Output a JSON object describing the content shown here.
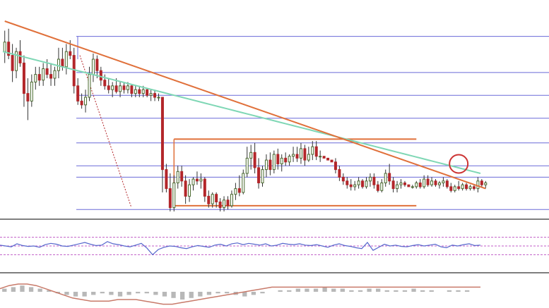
{
  "colors": {
    "background": "#ffffff",
    "bull_candle": "#4a6a2e",
    "bear_candle": "#b3262a",
    "ma_line": "#7fd7b5",
    "trend_line": "#e0703a",
    "range_box": "#e0703a",
    "fib_lines": "#6a6ad8",
    "rsi_line": "#5566cc",
    "rsi_levels": "#c05ec8",
    "macd_line": "#c87a6a",
    "macd_hist": "#b8b8b8",
    "highlight_circle": "#cc3333",
    "panel_separator": "#555555"
  },
  "chart_data": [
    {
      "type": "candlestick",
      "panel": "price",
      "candles": [
        {
          "o": 0.84,
          "h": 0.95,
          "l": 0.78,
          "c": 0.89
        },
        {
          "o": 0.89,
          "h": 0.96,
          "l": 0.8,
          "c": 0.82
        },
        {
          "o": 0.82,
          "h": 0.88,
          "l": 0.68,
          "c": 0.74
        },
        {
          "o": 0.74,
          "h": 0.86,
          "l": 0.7,
          "c": 0.84
        },
        {
          "o": 0.84,
          "h": 0.9,
          "l": 0.76,
          "c": 0.78
        },
        {
          "o": 0.78,
          "h": 0.82,
          "l": 0.55,
          "c": 0.62
        },
        {
          "o": 0.62,
          "h": 0.7,
          "l": 0.48,
          "c": 0.58
        },
        {
          "o": 0.58,
          "h": 0.72,
          "l": 0.55,
          "c": 0.68
        },
        {
          "o": 0.68,
          "h": 0.76,
          "l": 0.64,
          "c": 0.72
        },
        {
          "o": 0.72,
          "h": 0.76,
          "l": 0.66,
          "c": 0.69
        },
        {
          "o": 0.69,
          "h": 0.78,
          "l": 0.66,
          "c": 0.75
        },
        {
          "o": 0.75,
          "h": 0.8,
          "l": 0.7,
          "c": 0.72
        },
        {
          "o": 0.72,
          "h": 0.78,
          "l": 0.66,
          "c": 0.7
        },
        {
          "o": 0.7,
          "h": 0.76,
          "l": 0.66,
          "c": 0.74
        },
        {
          "o": 0.74,
          "h": 0.86,
          "l": 0.7,
          "c": 0.8
        },
        {
          "o": 0.8,
          "h": 0.86,
          "l": 0.74,
          "c": 0.76
        },
        {
          "o": 0.76,
          "h": 0.88,
          "l": 0.72,
          "c": 0.84
        },
        {
          "o": 0.84,
          "h": 0.9,
          "l": 0.8,
          "c": 0.82
        },
        {
          "o": 0.82,
          "h": 0.86,
          "l": 0.62,
          "c": 0.66
        },
        {
          "o": 0.66,
          "h": 0.7,
          "l": 0.56,
          "c": 0.58
        },
        {
          "o": 0.58,
          "h": 0.62,
          "l": 0.54,
          "c": 0.56
        },
        {
          "o": 0.56,
          "h": 0.64,
          "l": 0.52,
          "c": 0.6
        },
        {
          "o": 0.6,
          "h": 0.76,
          "l": 0.58,
          "c": 0.72
        },
        {
          "o": 0.72,
          "h": 0.83,
          "l": 0.68,
          "c": 0.8
        },
        {
          "o": 0.8,
          "h": 0.82,
          "l": 0.7,
          "c": 0.74
        },
        {
          "o": 0.74,
          "h": 0.76,
          "l": 0.66,
          "c": 0.69
        },
        {
          "o": 0.69,
          "h": 0.72,
          "l": 0.64,
          "c": 0.66
        },
        {
          "o": 0.66,
          "h": 0.7,
          "l": 0.62,
          "c": 0.64
        },
        {
          "o": 0.64,
          "h": 0.68,
          "l": 0.6,
          "c": 0.66
        },
        {
          "o": 0.66,
          "h": 0.7,
          "l": 0.62,
          "c": 0.63
        },
        {
          "o": 0.63,
          "h": 0.68,
          "l": 0.6,
          "c": 0.66
        },
        {
          "o": 0.66,
          "h": 0.68,
          "l": 0.62,
          "c": 0.64
        },
        {
          "o": 0.64,
          "h": 0.68,
          "l": 0.62,
          "c": 0.66
        },
        {
          "o": 0.66,
          "h": 0.67,
          "l": 0.6,
          "c": 0.62
        },
        {
          "o": 0.62,
          "h": 0.66,
          "l": 0.6,
          "c": 0.64
        },
        {
          "o": 0.64,
          "h": 0.66,
          "l": 0.6,
          "c": 0.62
        },
        {
          "o": 0.62,
          "h": 0.66,
          "l": 0.6,
          "c": 0.64
        },
        {
          "o": 0.64,
          "h": 0.65,
          "l": 0.6,
          "c": 0.61
        },
        {
          "o": 0.61,
          "h": 0.64,
          "l": 0.58,
          "c": 0.62
        },
        {
          "o": 0.62,
          "h": 0.64,
          "l": 0.58,
          "c": 0.6
        },
        {
          "o": 0.6,
          "h": 0.62,
          "l": 0.58,
          "c": 0.6
        },
        {
          "o": 0.6,
          "h": 0.6,
          "l": 0.1,
          "c": 0.22
        },
        {
          "o": 0.22,
          "h": 0.25,
          "l": 0.1,
          "c": 0.12
        },
        {
          "o": 0.12,
          "h": 0.2,
          "l": 0.0,
          "c": 0.02
        },
        {
          "o": 0.02,
          "h": 0.19,
          "l": 0.0,
          "c": 0.15
        },
        {
          "o": 0.15,
          "h": 0.24,
          "l": 0.12,
          "c": 0.21
        },
        {
          "o": 0.21,
          "h": 0.24,
          "l": 0.13,
          "c": 0.16
        },
        {
          "o": 0.16,
          "h": 0.19,
          "l": 0.04,
          "c": 0.08
        },
        {
          "o": 0.08,
          "h": 0.17,
          "l": 0.05,
          "c": 0.14
        },
        {
          "o": 0.14,
          "h": 0.18,
          "l": 0.11,
          "c": 0.17
        },
        {
          "o": 0.17,
          "h": 0.21,
          "l": 0.14,
          "c": 0.16
        },
        {
          "o": 0.16,
          "h": 0.2,
          "l": 0.12,
          "c": 0.17
        },
        {
          "o": 0.17,
          "h": 0.18,
          "l": 0.05,
          "c": 0.08
        },
        {
          "o": 0.08,
          "h": 0.11,
          "l": 0.02,
          "c": 0.04
        },
        {
          "o": 0.04,
          "h": 0.1,
          "l": 0.02,
          "c": 0.09
        },
        {
          "o": 0.09,
          "h": 0.1,
          "l": 0.02,
          "c": 0.05
        },
        {
          "o": 0.05,
          "h": 0.07,
          "l": 0.0,
          "c": 0.02
        },
        {
          "o": 0.02,
          "h": 0.08,
          "l": 0.0,
          "c": 0.06
        },
        {
          "o": 0.06,
          "h": 0.08,
          "l": 0.01,
          "c": 0.03
        },
        {
          "o": 0.03,
          "h": 0.11,
          "l": 0.02,
          "c": 0.09
        },
        {
          "o": 0.09,
          "h": 0.15,
          "l": 0.06,
          "c": 0.12
        },
        {
          "o": 0.12,
          "h": 0.19,
          "l": 0.08,
          "c": 0.1
        },
        {
          "o": 0.1,
          "h": 0.22,
          "l": 0.09,
          "c": 0.2
        },
        {
          "o": 0.2,
          "h": 0.34,
          "l": 0.18,
          "c": 0.28
        },
        {
          "o": 0.28,
          "h": 0.35,
          "l": 0.22,
          "c": 0.31
        },
        {
          "o": 0.31,
          "h": 0.36,
          "l": 0.2,
          "c": 0.23
        },
        {
          "o": 0.23,
          "h": 0.28,
          "l": 0.12,
          "c": 0.15
        },
        {
          "o": 0.15,
          "h": 0.24,
          "l": 0.13,
          "c": 0.22
        },
        {
          "o": 0.22,
          "h": 0.3,
          "l": 0.18,
          "c": 0.27
        },
        {
          "o": 0.27,
          "h": 0.31,
          "l": 0.19,
          "c": 0.22
        },
        {
          "o": 0.22,
          "h": 0.32,
          "l": 0.2,
          "c": 0.3
        },
        {
          "o": 0.3,
          "h": 0.33,
          "l": 0.22,
          "c": 0.25
        },
        {
          "o": 0.25,
          "h": 0.3,
          "l": 0.21,
          "c": 0.28
        },
        {
          "o": 0.28,
          "h": 0.31,
          "l": 0.24,
          "c": 0.26
        },
        {
          "o": 0.26,
          "h": 0.3,
          "l": 0.24,
          "c": 0.29
        },
        {
          "o": 0.29,
          "h": 0.34,
          "l": 0.26,
          "c": 0.3
        },
        {
          "o": 0.3,
          "h": 0.34,
          "l": 0.26,
          "c": 0.28
        },
        {
          "o": 0.28,
          "h": 0.36,
          "l": 0.25,
          "c": 0.33
        },
        {
          "o": 0.33,
          "h": 0.35,
          "l": 0.24,
          "c": 0.27
        },
        {
          "o": 0.27,
          "h": 0.34,
          "l": 0.26,
          "c": 0.3
        },
        {
          "o": 0.3,
          "h": 0.37,
          "l": 0.27,
          "c": 0.34
        },
        {
          "o": 0.34,
          "h": 0.37,
          "l": 0.27,
          "c": 0.29
        },
        {
          "o": 0.29,
          "h": 0.32,
          "l": 0.26,
          "c": 0.29
        },
        {
          "o": 0.29,
          "h": 0.29,
          "l": 0.28,
          "c": 0.28
        },
        {
          "o": 0.28,
          "h": 0.28,
          "l": 0.27,
          "c": 0.27
        },
        {
          "o": 0.27,
          "h": 0.27,
          "l": 0.26,
          "c": 0.26
        },
        {
          "o": 0.26,
          "h": 0.28,
          "l": 0.2,
          "c": 0.22
        },
        {
          "o": 0.22,
          "h": 0.24,
          "l": 0.16,
          "c": 0.18
        },
        {
          "o": 0.18,
          "h": 0.2,
          "l": 0.14,
          "c": 0.16
        },
        {
          "o": 0.16,
          "h": 0.18,
          "l": 0.12,
          "c": 0.14
        },
        {
          "o": 0.14,
          "h": 0.17,
          "l": 0.11,
          "c": 0.13
        },
        {
          "o": 0.13,
          "h": 0.16,
          "l": 0.11,
          "c": 0.14
        },
        {
          "o": 0.14,
          "h": 0.18,
          "l": 0.12,
          "c": 0.16
        },
        {
          "o": 0.16,
          "h": 0.17,
          "l": 0.12,
          "c": 0.13
        },
        {
          "o": 0.13,
          "h": 0.18,
          "l": 0.12,
          "c": 0.16
        },
        {
          "o": 0.16,
          "h": 0.2,
          "l": 0.13,
          "c": 0.18
        },
        {
          "o": 0.18,
          "h": 0.2,
          "l": 0.12,
          "c": 0.14
        },
        {
          "o": 0.14,
          "h": 0.16,
          "l": 0.1,
          "c": 0.11
        },
        {
          "o": 0.11,
          "h": 0.17,
          "l": 0.1,
          "c": 0.15
        },
        {
          "o": 0.15,
          "h": 0.22,
          "l": 0.13,
          "c": 0.2
        },
        {
          "o": 0.2,
          "h": 0.25,
          "l": 0.14,
          "c": 0.16
        },
        {
          "o": 0.16,
          "h": 0.18,
          "l": 0.1,
          "c": 0.12
        },
        {
          "o": 0.12,
          "h": 0.16,
          "l": 0.1,
          "c": 0.14
        },
        {
          "o": 0.14,
          "h": 0.17,
          "l": 0.12,
          "c": 0.15
        },
        {
          "o": 0.15,
          "h": 0.16,
          "l": 0.13,
          "c": 0.14
        },
        {
          "o": 0.14,
          "h": 0.14,
          "l": 0.13,
          "c": 0.13
        },
        {
          "o": 0.13,
          "h": 0.14,
          "l": 0.12,
          "c": 0.13
        },
        {
          "o": 0.13,
          "h": 0.16,
          "l": 0.12,
          "c": 0.15
        },
        {
          "o": 0.15,
          "h": 0.17,
          "l": 0.12,
          "c": 0.13
        },
        {
          "o": 0.13,
          "h": 0.19,
          "l": 0.12,
          "c": 0.17
        },
        {
          "o": 0.17,
          "h": 0.19,
          "l": 0.13,
          "c": 0.14
        },
        {
          "o": 0.14,
          "h": 0.18,
          "l": 0.13,
          "c": 0.16
        },
        {
          "o": 0.16,
          "h": 0.17,
          "l": 0.13,
          "c": 0.14
        },
        {
          "o": 0.14,
          "h": 0.16,
          "l": 0.12,
          "c": 0.15
        },
        {
          "o": 0.15,
          "h": 0.18,
          "l": 0.13,
          "c": 0.16
        },
        {
          "o": 0.16,
          "h": 0.17,
          "l": 0.12,
          "c": 0.13
        },
        {
          "o": 0.13,
          "h": 0.15,
          "l": 0.1,
          "c": 0.11
        },
        {
          "o": 0.11,
          "h": 0.14,
          "l": 0.1,
          "c": 0.13
        },
        {
          "o": 0.13,
          "h": 0.16,
          "l": 0.11,
          "c": 0.12
        },
        {
          "o": 0.12,
          "h": 0.15,
          "l": 0.11,
          "c": 0.14
        },
        {
          "o": 0.14,
          "h": 0.15,
          "l": 0.11,
          "c": 0.12
        },
        {
          "o": 0.12,
          "h": 0.14,
          "l": 0.11,
          "c": 0.13
        },
        {
          "o": 0.13,
          "h": 0.14,
          "l": 0.11,
          "c": 0.12
        },
        {
          "o": 0.12,
          "h": 0.18,
          "l": 0.1,
          "c": 0.16
        },
        {
          "o": 0.16,
          "h": 0.17,
          "l": 0.13,
          "c": 0.14
        },
        {
          "o": 0.14,
          "h": 0.16,
          "l": 0.12,
          "c": 0.15
        }
      ],
      "moving_average": [
        0.84,
        0.83,
        0.82,
        0.81,
        0.8,
        0.79,
        0.78,
        0.77,
        0.76,
        0.75,
        0.74,
        0.73,
        0.72,
        0.71,
        0.7,
        0.69,
        0.68,
        0.67,
        0.66,
        0.65,
        0.64,
        0.63,
        0.62,
        0.61,
        0.6,
        0.59,
        0.58,
        0.57,
        0.56,
        0.55,
        0.54,
        0.53,
        0.52,
        0.51,
        0.5,
        0.49,
        0.48,
        0.47,
        0.46,
        0.45,
        0.44,
        0.43,
        0.42,
        0.41,
        0.4,
        0.39,
        0.38,
        0.37,
        0.36,
        0.35,
        0.34,
        0.33,
        0.32,
        0.31,
        0.3,
        0.29,
        0.28,
        0.27,
        0.26,
        0.25,
        0.24,
        0.23,
        0.22,
        0.21,
        0.2
      ],
      "trend_line": {
        "from": {
          "x": 0,
          "y": 1.0
        },
        "to": {
          "x": 125,
          "y": 0.12
        }
      },
      "range": {
        "resistance": 0.38,
        "support": 0.03,
        "x_start": 44,
        "x_end": 107
      },
      "fib_levels": [
        0.92,
        0.73,
        0.61,
        0.49,
        0.36,
        0.24,
        0.18,
        0.01
      ],
      "highlight": {
        "x": 118,
        "y": 0.25
      },
      "ylim": [
        0,
        1
      ]
    },
    {
      "type": "line",
      "panel": "rsi",
      "levels": [
        70,
        50,
        30
      ],
      "values": [
        52,
        50,
        48,
        55,
        51,
        49,
        50,
        47,
        53,
        56,
        54,
        50,
        49,
        52,
        55,
        58,
        54,
        51,
        52,
        60,
        55,
        53,
        50,
        48,
        52,
        56,
        45,
        30,
        42,
        47,
        50,
        49,
        46,
        44,
        48,
        51,
        49,
        47,
        52,
        54,
        50,
        55,
        57,
        53,
        56,
        54,
        52,
        55,
        50,
        52,
        56,
        54,
        53,
        55,
        52,
        51,
        53,
        50,
        47,
        52,
        55,
        51,
        49,
        46,
        44,
        58,
        40,
        47,
        54,
        50,
        52,
        49,
        48,
        51,
        53,
        50,
        52,
        54,
        48,
        46,
        52,
        50,
        53,
        55,
        51,
        52
      ],
      "ylim": [
        0,
        100
      ]
    },
    {
      "type": "bar",
      "panel": "macd",
      "histogram": [
        2,
        3,
        4,
        3,
        2,
        1,
        -1,
        -2,
        -3,
        -3,
        -2,
        -1,
        -2,
        -3,
        -2,
        -1,
        -1,
        -2,
        -3,
        -4,
        -5,
        -4,
        -3,
        -2,
        -1,
        -1,
        -2,
        -3,
        -2,
        -1,
        0,
        1,
        1,
        2,
        2,
        2,
        3,
        2,
        2,
        1,
        1,
        2,
        2,
        1,
        1,
        1,
        2,
        1,
        1,
        0,
        1,
        1,
        1,
        0
      ],
      "signal": [
        2,
        4,
        5,
        5,
        4,
        2,
        0,
        -2,
        -4,
        -5,
        -6,
        -6,
        -6,
        -5,
        -5,
        -5,
        -6,
        -7,
        -8,
        -8,
        -7,
        -6,
        -5,
        -4,
        -3,
        -2,
        -1,
        0,
        1,
        2,
        3,
        3,
        3,
        3,
        3,
        3,
        3,
        3,
        3,
        3,
        3,
        3,
        3,
        3,
        3,
        3,
        3,
        3,
        3,
        3,
        3,
        3,
        3,
        3
      ],
      "ylim": [
        -10,
        10
      ]
    }
  ]
}
